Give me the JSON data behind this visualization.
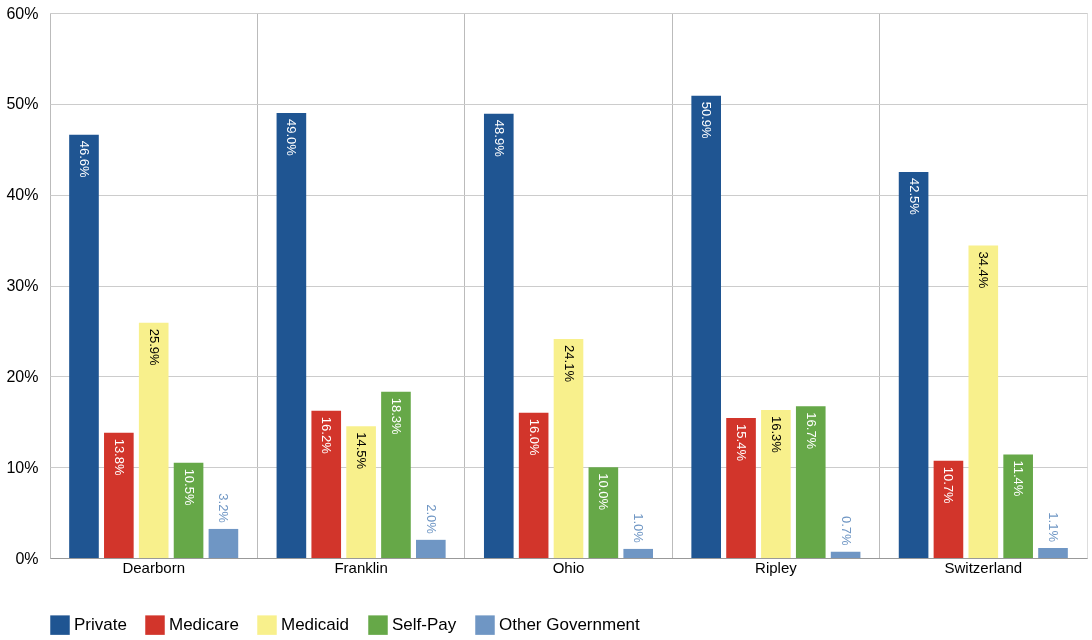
{
  "chart_data": {
    "type": "bar",
    "categories": [
      "Dearborn",
      "Franklin",
      "Ohio",
      "Ripley",
      "Switzerland"
    ],
    "series": [
      {
        "name": "Private",
        "color": "#1f5592",
        "values": [
          46.6,
          49.0,
          48.9,
          50.9,
          42.5
        ],
        "value_labels": [
          "46.6%",
          "49.0%",
          "48.9%",
          "50.9%",
          "42.5%"
        ]
      },
      {
        "name": "Medicare",
        "color": "#d2352b",
        "values": [
          13.8,
          16.2,
          16.0,
          15.4,
          10.7
        ],
        "value_labels": [
          "13.8%",
          "16.2%",
          "16.0%",
          "15.4%",
          "10.7%"
        ]
      },
      {
        "name": "Medicaid",
        "color": "#f8f08c",
        "values": [
          25.9,
          14.5,
          24.1,
          16.3,
          34.4
        ],
        "value_labels": [
          "25.9%",
          "14.5%",
          "24.1%",
          "16.3%",
          "34.4%"
        ]
      },
      {
        "name": "Self-Pay",
        "color": "#66a848",
        "values": [
          10.5,
          18.3,
          10.0,
          16.7,
          11.4
        ],
        "value_labels": [
          "10.5%",
          "18.3%",
          "10.0%",
          "16.7%",
          "11.4%"
        ]
      },
      {
        "name": "Other Government",
        "color": "#6f96c4",
        "values": [
          3.2,
          2.0,
          1.0,
          0.7,
          1.1
        ],
        "value_labels": [
          "3.2%",
          "2.0%",
          "1.0%",
          "0.7%",
          "1.1%"
        ]
      }
    ],
    "ylim": [
      0,
      60
    ],
    "yticks": [
      {
        "value": 0,
        "label": "0%"
      },
      {
        "value": 10,
        "label": "10%"
      },
      {
        "value": 20,
        "label": "20%"
      },
      {
        "value": 30,
        "label": "30%"
      },
      {
        "value": 40,
        "label": "40%"
      },
      {
        "value": 50,
        "label": "50%"
      },
      {
        "value": 60,
        "label": "60%"
      }
    ],
    "grid": true,
    "legend": "bottom"
  }
}
